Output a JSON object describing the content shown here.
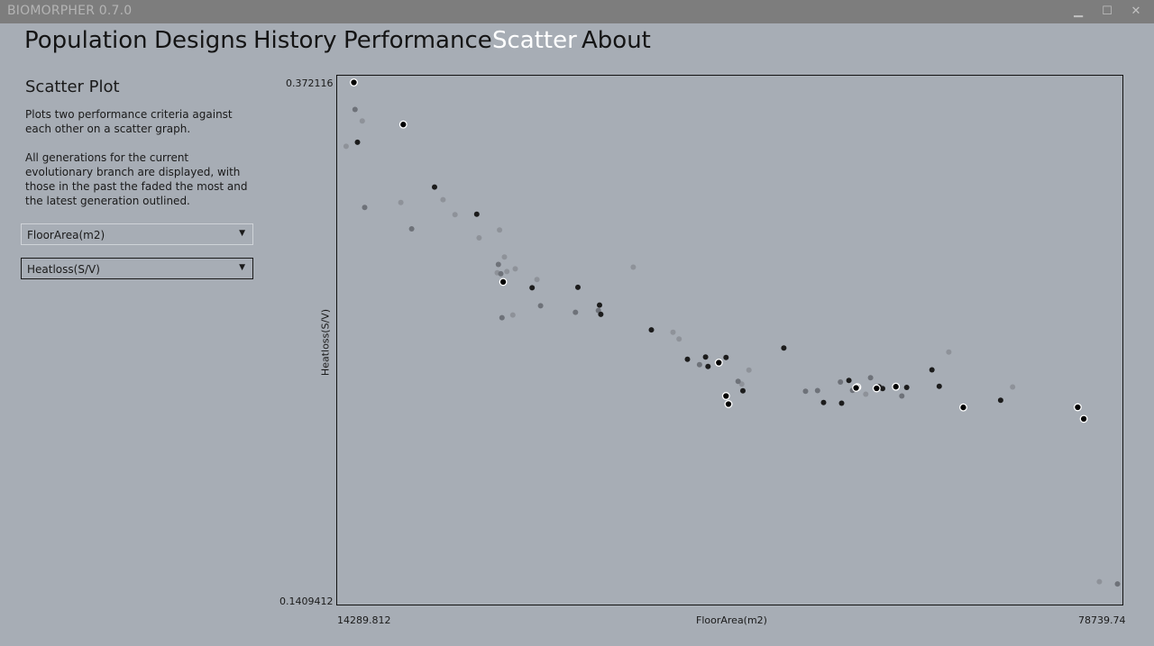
{
  "app": {
    "title": "BIOMORPHER 0.7.0"
  },
  "window": {
    "minimize": "▁",
    "maximize": "☐",
    "close": "✕"
  },
  "nav": {
    "population": "Population",
    "designs": "Designs",
    "history": "History",
    "performance": "Performance",
    "scatter": "Scatter",
    "about": "About",
    "active": "Scatter"
  },
  "sidebar": {
    "title": "Scatter Plot",
    "p1": "Plots two performance criteria against each other on a scatter graph.",
    "p2": "All generations for the current evolutionary branch are displayed, with those in the past the faded the most and the latest generation outlined.",
    "x_criterion": "FloorArea(m2)",
    "y_criterion": "Heatloss(S/V)"
  },
  "chart_data": {
    "type": "scatter",
    "xlabel": "FloorArea(m2)",
    "ylabel": "Heatloss(S/V)",
    "xlim": [
      14289.812,
      78739.74
    ],
    "ylim": [
      0.1409412,
      0.372116
    ],
    "x_min_label": "14289.812",
    "x_max_label": "78739.74",
    "y_min_label": "0.1409412",
    "y_max_label": "0.372116",
    "series": [
      {
        "values": [
          [
            14659,
            0.3427
          ],
          [
            16000,
            0.354
          ],
          [
            19200,
            0.3177
          ],
          [
            22700,
            0.319
          ],
          [
            23700,
            0.3123
          ],
          [
            25700,
            0.302
          ],
          [
            27400,
            0.3055
          ],
          [
            27200,
            0.2865
          ],
          [
            27800,
            0.2935
          ],
          [
            28000,
            0.287
          ],
          [
            28700,
            0.2882
          ],
          [
            28500,
            0.2677
          ],
          [
            30500,
            0.2835
          ],
          [
            38500,
            0.289
          ],
          [
            42300,
            0.257
          ],
          [
            41800,
            0.26
          ],
          [
            47500,
            0.237
          ],
          [
            48100,
            0.2432
          ],
          [
            57800,
            0.2325
          ],
          [
            64700,
            0.2512
          ],
          [
            70000,
            0.2357
          ],
          [
            77200,
            0.1491
          ]
        ]
      },
      {
        "values": [
          [
            15400,
            0.3591
          ],
          [
            16200,
            0.3155
          ],
          [
            20100,
            0.306
          ],
          [
            27300,
            0.2902
          ],
          [
            27500,
            0.286
          ],
          [
            27600,
            0.2665
          ],
          [
            30800,
            0.2718
          ],
          [
            33700,
            0.2689
          ],
          [
            35600,
            0.2697
          ],
          [
            44000,
            0.2456
          ],
          [
            47200,
            0.2382
          ],
          [
            52800,
            0.2338
          ],
          [
            53800,
            0.2341
          ],
          [
            55700,
            0.2379
          ],
          [
            58200,
            0.2398
          ],
          [
            56700,
            0.2342
          ],
          [
            60800,
            0.2317
          ],
          [
            78700,
            0.1481
          ]
        ]
      },
      {
        "values": [
          [
            15600,
            0.3445
          ],
          [
            22000,
            0.3246
          ],
          [
            25500,
            0.3125
          ],
          [
            30100,
            0.2798
          ],
          [
            33900,
            0.28
          ],
          [
            35700,
            0.2721
          ],
          [
            35800,
            0.268
          ],
          [
            40000,
            0.2611
          ],
          [
            43000,
            0.248
          ],
          [
            44500,
            0.249
          ],
          [
            44700,
            0.2448
          ],
          [
            46200,
            0.2488
          ],
          [
            47600,
            0.234
          ],
          [
            51000,
            0.253
          ],
          [
            54300,
            0.2288
          ],
          [
            55800,
            0.2285
          ],
          [
            56400,
            0.2386
          ],
          [
            58900,
            0.2358
          ],
          [
            59200,
            0.235
          ],
          [
            61200,
            0.2355
          ],
          [
            63300,
            0.2433
          ],
          [
            63900,
            0.236
          ],
          [
            69000,
            0.2298
          ]
        ]
      },
      {
        "values": [
          [
            15300,
            0.3711
          ],
          [
            19400,
            0.3524
          ],
          [
            27700,
            0.2824
          ],
          [
            45600,
            0.2465
          ],
          [
            46400,
            0.2281
          ],
          [
            46200,
            0.2317
          ],
          [
            57100,
            0.2356
          ],
          [
            57000,
            0.2353
          ],
          [
            58700,
            0.2351
          ],
          [
            60300,
            0.2358
          ],
          [
            65900,
            0.2266
          ],
          [
            75400,
            0.2267
          ],
          [
            75900,
            0.2215
          ]
        ]
      }
    ]
  }
}
